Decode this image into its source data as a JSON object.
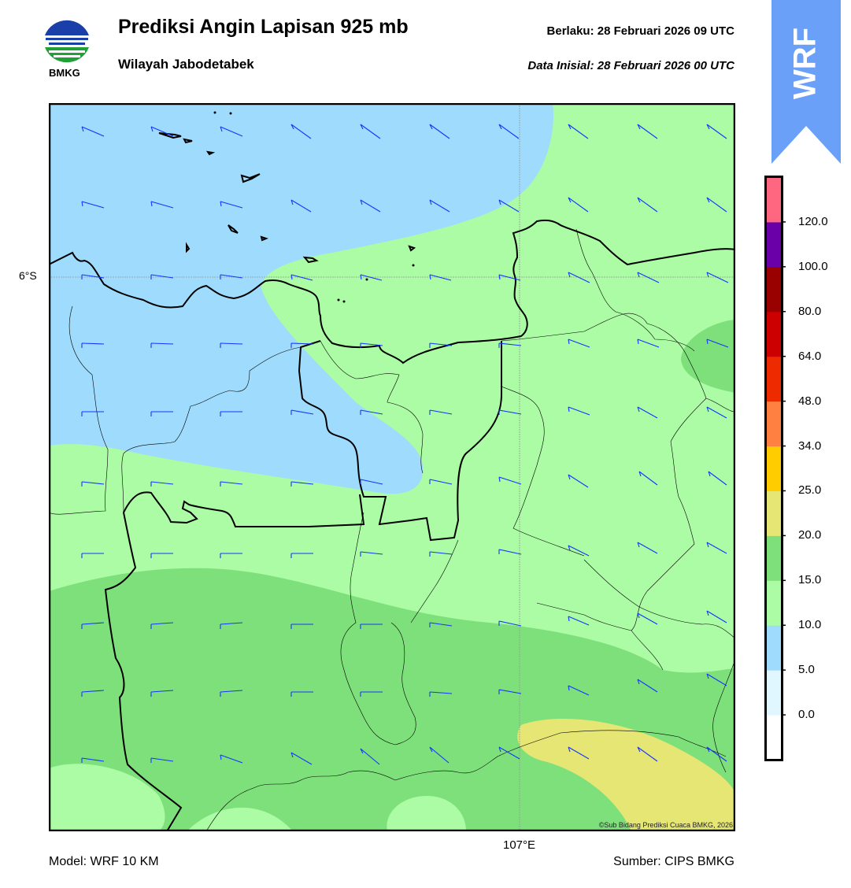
{
  "header": {
    "title": "Prediksi Angin Lapisan 925 mb",
    "subtitle": "Wilayah Jabodetabek",
    "valid_label": "Berlaku:  28 Februari 2026 09 UTC",
    "init_label": "Data Inisial:  28 Februari 2026 00 UTC",
    "logo_text": "BMKG"
  },
  "badge": {
    "text": "WRF",
    "color": "#6aa0f8"
  },
  "map": {
    "lat_label": "6°S",
    "lon_label": "107°E",
    "credit": "©Sub Bidang Prediksi Cuaca BMKG, 2026"
  },
  "footer": {
    "model": "Model: WRF 10 KM",
    "source": "Sumber: CIPS BMKG"
  },
  "colorbar": {
    "ticks": [
      "0.0",
      "5.0",
      "10.0",
      "15.0",
      "20.0",
      "25.0",
      "34.0",
      "48.0",
      "64.0",
      "80.0",
      "100.0",
      "120.0"
    ],
    "colors": [
      "#ffffff",
      "#e0f7ff",
      "#9edbfc",
      "#abfca4",
      "#7ee07a",
      "#e6e674",
      "#ffcc00",
      "#ff8040",
      "#ee2b00",
      "#cc0000",
      "#990000",
      "#6a00a8",
      "#ff6680"
    ]
  },
  "legend_colors": {
    "5-10": "#9edbfc",
    "10-15": "#abfca4",
    "15-20": "#7ee07a",
    "20-25": "#e6e674",
    "barb": "#1535ff"
  }
}
